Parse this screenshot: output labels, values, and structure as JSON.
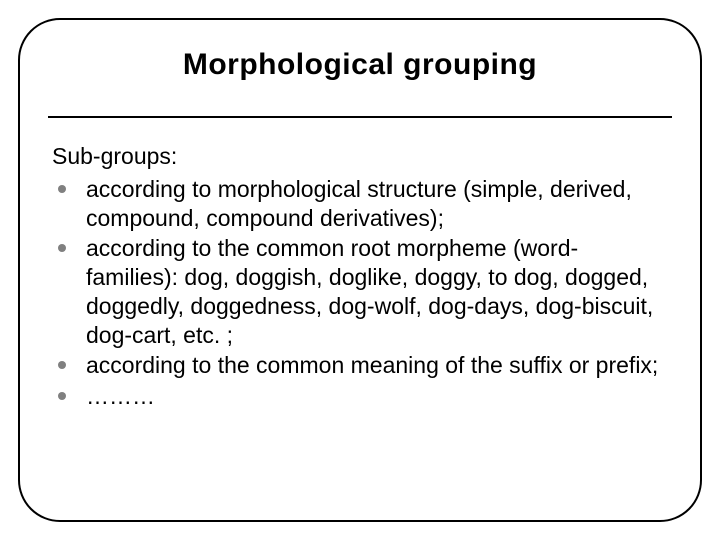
{
  "slide": {
    "title": "Morphological grouping",
    "subheading": "Sub-groups:",
    "bullets": [
      {
        "text": "according to morphological structure (simple, derived, compound, compound derivatives);"
      },
      {
        "text": "according to the common root morpheme (word-families): dog, doggish, doglike, doggy, to dog, dogged, doggedly, doggedness, dog-wolf, dog-days, dog-biscuit, dog-cart, etc. ;"
      },
      {
        "text": "according to the common meaning of the suffix or prefix;"
      },
      {
        "text": "………"
      }
    ],
    "style": {
      "frame_border_color": "#000000",
      "frame_border_width": 2.5,
      "frame_border_radius": 42,
      "title_font_family": "Verdana, Geneva, sans-serif",
      "title_font_size": 30,
      "title_font_weight": 900,
      "title_color": "#000000",
      "title_underline_color": "#000000",
      "title_underline_width": 2,
      "body_font_family": "Arial, Helvetica, sans-serif",
      "body_font_size": 23,
      "body_color": "#000000",
      "bullet_marker_color": "#808080",
      "bullet_marker_size": 8,
      "background_color": "#ffffff",
      "slide_width": 720,
      "slide_height": 540
    }
  }
}
